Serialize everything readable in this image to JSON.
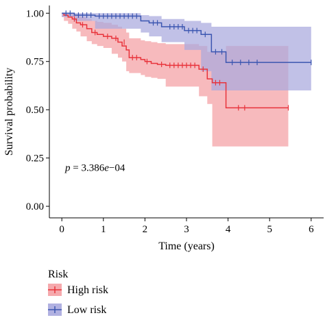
{
  "chart_data": {
    "type": "line",
    "subtype": "kaplan-meier",
    "xlabel": "Time (years)",
    "ylabel": "Survival probability",
    "xlim": [
      -0.3,
      6.3
    ],
    "ylim": [
      -0.06,
      1.04
    ],
    "xticks": [
      0,
      1,
      2,
      3,
      4,
      5,
      6
    ],
    "xtick_labels": [
      "0",
      "1",
      "2",
      "3",
      "4",
      "5",
      "6"
    ],
    "yticks": [
      0,
      0.25,
      0.5,
      0.75,
      1.0
    ],
    "ytick_labels": [
      "0.00",
      "0.25",
      "0.50",
      "0.75",
      "1.00"
    ],
    "grid": false,
    "annotation": {
      "p_symbol": "p",
      "p_rest": " = 3.386",
      "p_e": "e",
      "p_exp": "−04",
      "x": 0.08,
      "y": 0.2
    },
    "legend": {
      "title": "Risk",
      "placement": "bottom-left"
    },
    "series": [
      {
        "name": "High risk",
        "color": "#e8323a",
        "fill": "#f4a0a4",
        "step_x": [
          0,
          0.05,
          0.15,
          0.25,
          0.35,
          0.45,
          0.6,
          0.72,
          0.85,
          1.0,
          1.2,
          1.35,
          1.45,
          1.55,
          1.62,
          1.9,
          2.0,
          2.15,
          2.3,
          2.5,
          3.3,
          3.5,
          3.62,
          3.95,
          5.45
        ],
        "step_y": [
          1.0,
          0.99,
          0.98,
          0.97,
          0.95,
          0.94,
          0.92,
          0.9,
          0.89,
          0.88,
          0.87,
          0.85,
          0.83,
          0.81,
          0.77,
          0.76,
          0.75,
          0.74,
          0.735,
          0.73,
          0.71,
          0.66,
          0.64,
          0.51,
          0.51
        ],
        "upper": [
          1.0,
          1.0,
          1.0,
          0.995,
          0.985,
          0.98,
          0.97,
          0.96,
          0.955,
          0.95,
          0.94,
          0.93,
          0.92,
          0.9,
          0.87,
          0.86,
          0.855,
          0.85,
          0.845,
          0.84,
          0.83,
          0.8,
          0.8,
          0.83,
          0.83
        ],
        "lower": [
          1.0,
          0.98,
          0.96,
          0.945,
          0.92,
          0.905,
          0.88,
          0.855,
          0.84,
          0.83,
          0.82,
          0.79,
          0.77,
          0.75,
          0.7,
          0.69,
          0.68,
          0.67,
          0.665,
          0.66,
          0.62,
          0.57,
          0.53,
          0.31,
          0.31
        ],
        "censor_x": [
          0.3,
          0.5,
          0.8,
          1.1,
          1.3,
          1.5,
          1.7,
          1.8,
          2.05,
          2.4,
          2.6,
          2.7,
          2.8,
          2.9,
          3.0,
          3.1,
          3.2,
          3.4,
          3.7,
          3.8,
          4.25,
          4.4,
          5.45
        ],
        "censor_y": [
          0.97,
          0.94,
          0.9,
          0.88,
          0.87,
          0.85,
          0.77,
          0.77,
          0.75,
          0.735,
          0.73,
          0.73,
          0.73,
          0.73,
          0.73,
          0.73,
          0.73,
          0.71,
          0.64,
          0.64,
          0.51,
          0.51,
          0.51
        ]
      },
      {
        "name": "Low risk",
        "color": "#3a55b0",
        "fill": "#a9a9de",
        "step_x": [
          0,
          0.3,
          0.8,
          1.9,
          2.1,
          2.4,
          2.95,
          3.35,
          3.6,
          3.95,
          6.0
        ],
        "step_y": [
          1.0,
          0.99,
          0.985,
          0.96,
          0.95,
          0.93,
          0.91,
          0.89,
          0.8,
          0.745,
          0.745
        ],
        "upper": [
          1.0,
          1.0,
          1.0,
          0.99,
          0.985,
          0.97,
          0.96,
          0.95,
          0.93,
          0.93,
          0.93
        ],
        "lower": [
          1.0,
          0.98,
          0.96,
          0.92,
          0.9,
          0.88,
          0.85,
          0.81,
          0.7,
          0.6,
          0.6
        ],
        "censor_x": [
          0.1,
          0.2,
          0.4,
          0.5,
          0.6,
          0.7,
          0.9,
          1.0,
          1.1,
          1.2,
          1.3,
          1.4,
          1.5,
          1.6,
          1.7,
          1.8,
          2.2,
          2.3,
          2.6,
          2.7,
          2.8,
          2.9,
          3.05,
          3.15,
          3.25,
          3.45,
          3.7,
          3.85,
          4.1,
          4.3,
          4.5,
          4.7,
          6.0
        ],
        "censor_y": [
          1.0,
          1.0,
          0.99,
          0.99,
          0.99,
          0.99,
          0.985,
          0.985,
          0.985,
          0.985,
          0.985,
          0.985,
          0.985,
          0.985,
          0.985,
          0.985,
          0.95,
          0.95,
          0.93,
          0.93,
          0.93,
          0.93,
          0.91,
          0.91,
          0.91,
          0.89,
          0.8,
          0.8,
          0.745,
          0.745,
          0.745,
          0.745,
          0.745
        ]
      }
    ]
  }
}
